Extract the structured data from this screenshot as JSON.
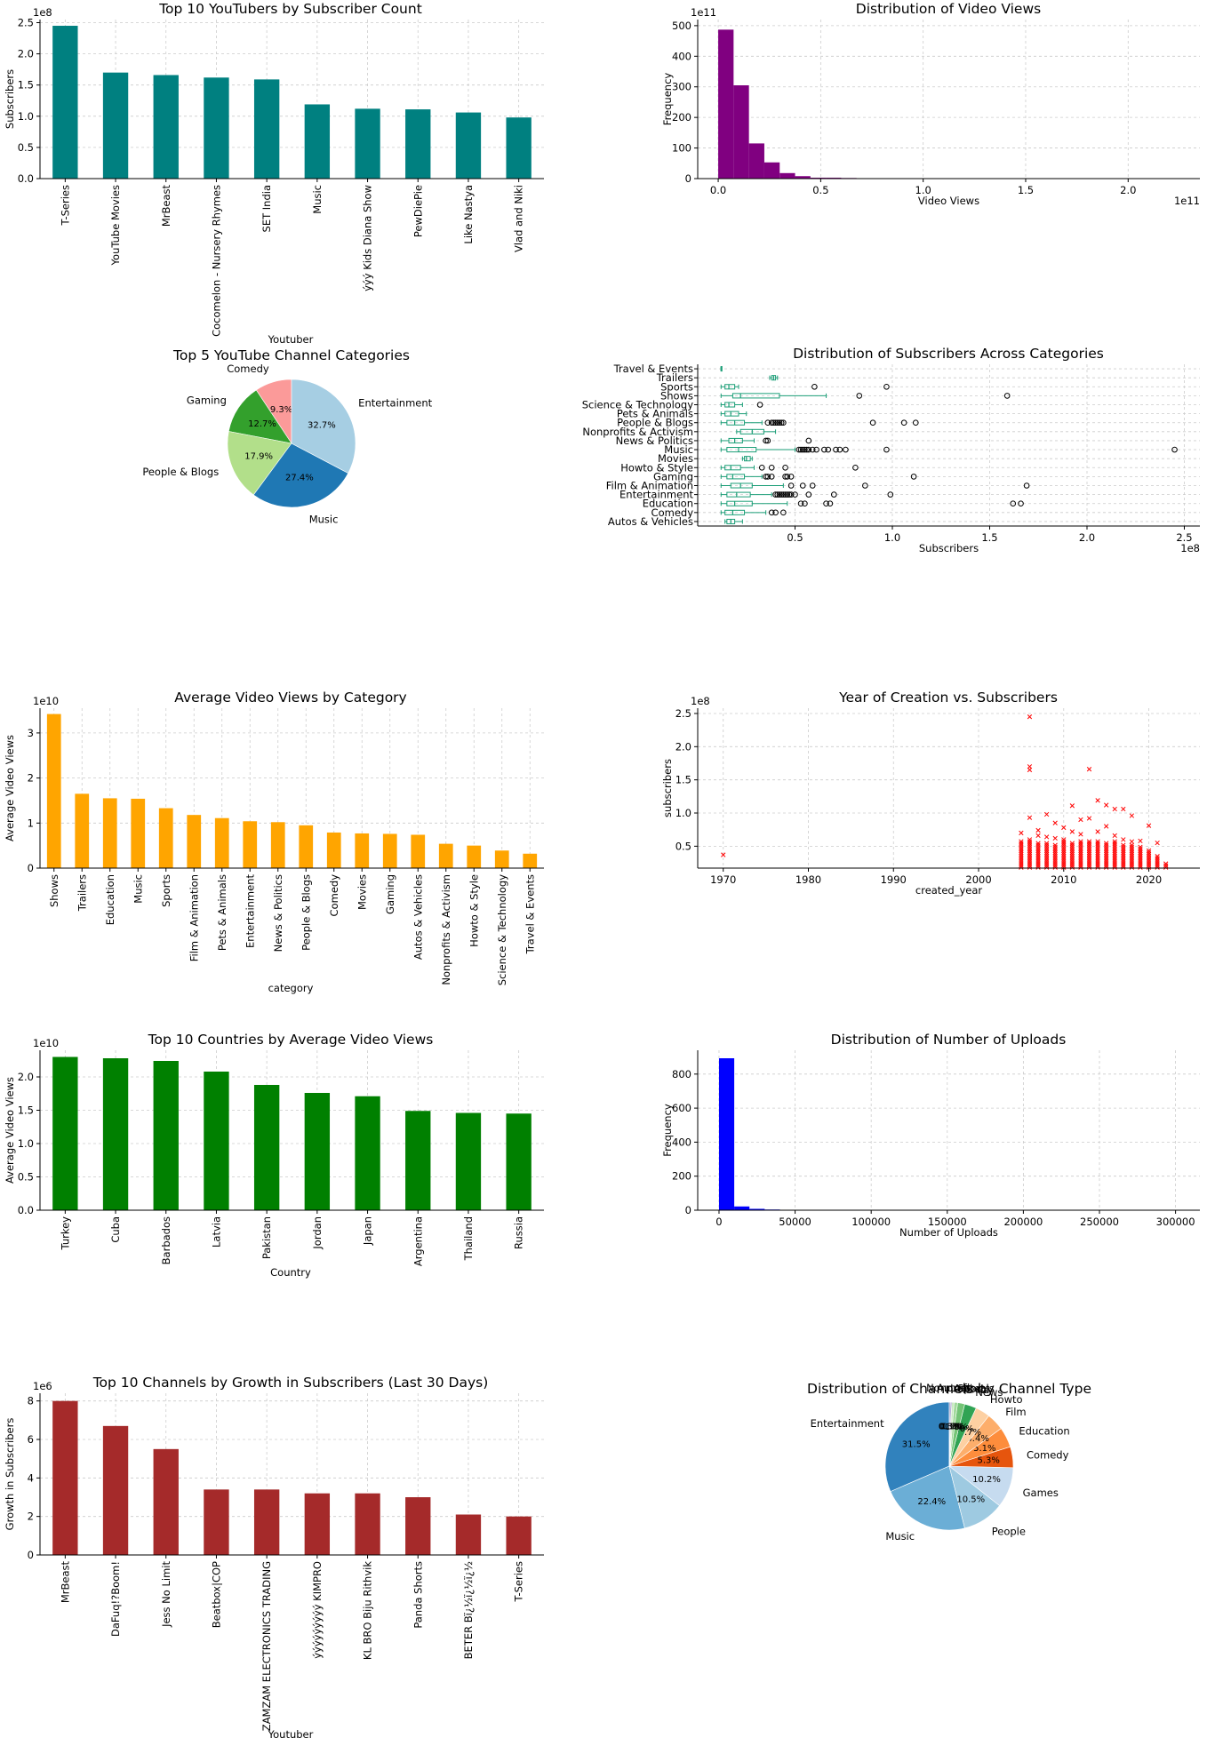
{
  "chart_data": [
    {
      "id": "top_youtubers",
      "type": "bar",
      "title": "Top 10 YouTubers by Subscriber Count",
      "xlabel": "Youtuber",
      "ylabel": "Subscribers",
      "exponent": "1e8",
      "color": "#008080",
      "categories": [
        "T-Series",
        "YouTube Movies",
        "MrBeast",
        "Cocomelon - Nursery Rhymes",
        "SET India",
        "Music",
        "ýýý Kids Diana Show",
        "PewDiePie",
        "Like Nastya",
        "Vlad and Niki"
      ],
      "values": [
        2.45,
        1.7,
        1.66,
        1.62,
        1.59,
        1.19,
        1.12,
        1.11,
        1.06,
        0.98
      ],
      "ylim": [
        0,
        2.55
      ],
      "yticks": [
        "0.0",
        "0.5",
        "1.0",
        "1.5",
        "2.0",
        "2.5"
      ],
      "ytick_values": [
        0,
        0.5,
        1.0,
        1.5,
        2.0,
        2.5
      ]
    },
    {
      "id": "video_views_hist",
      "type": "bar",
      "title": "Distribution of Video Views",
      "xlabel": "Video Views",
      "ylabel": "Frequency",
      "exponent": "1e11",
      "color": "#800080",
      "bin_width": 0.075,
      "bin_start": 0,
      "values": [
        487,
        305,
        115,
        53,
        18,
        8,
        3,
        3,
        2,
        0,
        0,
        1,
        1,
        0,
        0,
        0,
        0,
        0,
        0,
        0,
        0,
        0,
        0,
        0,
        0,
        0,
        0,
        0,
        0,
        0,
        1
      ],
      "xlim": [
        -0.1,
        2.35
      ],
      "ylim": [
        0,
        520
      ],
      "xticks": [
        "0.0",
        "0.5",
        "1.0",
        "1.5",
        "2.0"
      ],
      "xtick_values": [
        0,
        0.5,
        1.0,
        1.5,
        2.0
      ],
      "yticks": [
        "0",
        "100",
        "200",
        "300",
        "400",
        "500"
      ],
      "ytick_values": [
        0,
        100,
        200,
        300,
        400,
        500
      ]
    },
    {
      "id": "top_categories_pie",
      "type": "pie",
      "title": "Top 5 YouTube Channel Categories",
      "colors": [
        "#fb9a99",
        "#33a02c",
        "#b2df8a",
        "#1f78b4",
        "#a6cee3"
      ],
      "labels": [
        "Comedy",
        "Gaming",
        "People & Blogs",
        "Music",
        "Entertainment"
      ],
      "values": [
        9.3,
        12.7,
        17.9,
        27.4,
        32.7
      ],
      "pct_labels": [
        "9.3%",
        "12.7%",
        "17.9%",
        "27.4%",
        "32.7%"
      ],
      "start_angle": 90
    },
    {
      "id": "subs_by_category_box",
      "type": "box",
      "title": "Distribution of Subscribers Across Categories",
      "xlabel": "Subscribers",
      "exponent": "1e8",
      "box_color": "#1b9e77",
      "categories": [
        "Autos & Vehicles",
        "Comedy",
        "Education",
        "Entertainment",
        "Film & Animation",
        "Gaming",
        "Howto & Style",
        "Movies",
        "Music",
        "News & Politics",
        "Nonprofits & Activism",
        "People & Blogs",
        "Pets & Animals",
        "Science & Technology",
        "Shows",
        "Sports",
        "Trailers",
        "Travel & Events"
      ],
      "boxes": [
        {
          "wl": 0.14,
          "q1": 0.15,
          "med": 0.17,
          "q3": 0.19,
          "wh": 0.23,
          "out": []
        },
        {
          "wl": 0.12,
          "q1": 0.14,
          "med": 0.18,
          "q3": 0.24,
          "wh": 0.35,
          "out": [
            0.38,
            0.4,
            0.44
          ]
        },
        {
          "wl": 0.12,
          "q1": 0.15,
          "med": 0.19,
          "q3": 0.28,
          "wh": 0.46,
          "out": [
            0.53,
            0.55,
            0.66,
            0.68,
            1.62,
            1.66
          ]
        },
        {
          "wl": 0.12,
          "q1": 0.15,
          "med": 0.2,
          "q3": 0.27,
          "wh": 0.38,
          "out": [
            0.4,
            0.41,
            0.42,
            0.43,
            0.44,
            0.45,
            0.46,
            0.47,
            0.48,
            0.5,
            0.57,
            0.7,
            0.99
          ]
        },
        {
          "wl": 0.12,
          "q1": 0.17,
          "med": 0.22,
          "q3": 0.28,
          "wh": 0.44,
          "out": [
            0.48,
            0.54,
            0.59,
            0.86,
            1.69
          ]
        },
        {
          "wl": 0.12,
          "q1": 0.15,
          "med": 0.18,
          "q3": 0.24,
          "wh": 0.33,
          "out": [
            0.35,
            0.36,
            0.38,
            0.45,
            0.46,
            0.48,
            1.11
          ]
        },
        {
          "wl": 0.12,
          "q1": 0.14,
          "med": 0.17,
          "q3": 0.22,
          "wh": 0.29,
          "out": [
            0.33,
            0.38,
            0.45,
            0.81
          ]
        },
        {
          "wl": 0.23,
          "q1": 0.24,
          "med": 0.25,
          "q3": 0.27,
          "wh": 0.28,
          "out": []
        },
        {
          "wl": 0.12,
          "q1": 0.15,
          "med": 0.21,
          "q3": 0.3,
          "wh": 0.5,
          "out": [
            0.52,
            0.53,
            0.54,
            0.55,
            0.56,
            0.57,
            0.59,
            0.61,
            0.65,
            0.67,
            0.71,
            0.73,
            0.76,
            0.97,
            2.45
          ]
        },
        {
          "wl": 0.12,
          "q1": 0.16,
          "med": 0.19,
          "q3": 0.23,
          "wh": 0.29,
          "out": [
            0.35,
            0.36,
            0.57
          ]
        },
        {
          "wl": 0.2,
          "q1": 0.22,
          "med": 0.28,
          "q3": 0.34,
          "wh": 0.4,
          "out": []
        },
        {
          "wl": 0.12,
          "q1": 0.15,
          "med": 0.19,
          "q3": 0.24,
          "wh": 0.33,
          "out": [
            0.36,
            0.38,
            0.39,
            0.4,
            0.41,
            0.42,
            0.43,
            0.44,
            0.9,
            1.06,
            1.12
          ]
        },
        {
          "wl": 0.12,
          "q1": 0.14,
          "med": 0.17,
          "q3": 0.21,
          "wh": 0.25,
          "out": []
        },
        {
          "wl": 0.12,
          "q1": 0.14,
          "med": 0.16,
          "q3": 0.19,
          "wh": 0.23,
          "out": [
            0.32
          ]
        },
        {
          "wl": 0.12,
          "q1": 0.18,
          "med": 0.22,
          "q3": 0.42,
          "wh": 0.66,
          "out": [
            0.83,
            1.59
          ]
        },
        {
          "wl": 0.12,
          "q1": 0.14,
          "med": 0.16,
          "q3": 0.19,
          "wh": 0.21,
          "out": [
            0.6,
            0.97
          ]
        },
        {
          "wl": 0.37,
          "q1": 0.38,
          "med": 0.39,
          "q3": 0.4,
          "wh": 0.41,
          "out": []
        },
        {
          "wl": 0.12,
          "q1": 0.12,
          "med": 0.12,
          "q3": 0.12,
          "wh": 0.12,
          "out": []
        }
      ],
      "xlim": [
        0.0,
        2.58
      ],
      "xticks": [
        "0.5",
        "1.0",
        "1.5",
        "2.0",
        "2.5"
      ],
      "xtick_values": [
        0.5,
        1.0,
        1.5,
        2.0,
        2.5
      ]
    },
    {
      "id": "avg_views_category",
      "type": "bar",
      "title": "Average Video Views by Category",
      "xlabel": "category",
      "ylabel": "Average Video Views",
      "exponent": "1e10",
      "color": "#ffa500",
      "categories": [
        "Shows",
        "Trailers",
        "Education",
        "Music",
        "Sports",
        "Film & Animation",
        "Pets & Animals",
        "Entertainment",
        "News & Politics",
        "People & Blogs",
        "Comedy",
        "Movies",
        "Gaming",
        "Autos & Vehicles",
        "Nonprofits & Activism",
        "Howto & Style",
        "Science & Technology",
        "Travel & Events"
      ],
      "values": [
        3.42,
        1.65,
        1.55,
        1.54,
        1.33,
        1.18,
        1.11,
        1.04,
        1.02,
        0.95,
        0.79,
        0.77,
        0.76,
        0.74,
        0.54,
        0.5,
        0.39,
        0.32
      ],
      "ylim": [
        0,
        3.55
      ],
      "yticks": [
        "0",
        "1",
        "2",
        "3"
      ],
      "ytick_values": [
        0,
        1,
        2,
        3
      ]
    },
    {
      "id": "year_vs_subs",
      "type": "scatter",
      "title": "Year of Creation vs. Subscribers",
      "xlabel": "created_year",
      "ylabel": "subscribers",
      "exponent": "1e8",
      "color": "#ff0000",
      "marker": "x",
      "outliers": [
        [
          1970,
          0.37
        ],
        [
          2006,
          2.45
        ],
        [
          2006,
          1.7
        ],
        [
          2006,
          1.65
        ],
        [
          2013,
          1.66
        ],
        [
          2011,
          1.11
        ],
        [
          2014,
          1.19
        ],
        [
          2015,
          1.12
        ],
        [
          2016,
          1.06
        ],
        [
          2017,
          1.06
        ],
        [
          2018,
          0.96
        ],
        [
          2020,
          0.81
        ],
        [
          2008,
          0.98
        ],
        [
          2009,
          0.85
        ],
        [
          2010,
          0.78
        ],
        [
          2012,
          0.9
        ],
        [
          2013,
          0.92
        ],
        [
          2007,
          0.74
        ],
        [
          2006,
          0.93
        ],
        [
          2005,
          0.7
        ],
        [
          2021,
          0.55
        ],
        [
          2014,
          0.72
        ],
        [
          2015,
          0.8
        ],
        [
          2016,
          0.66
        ],
        [
          2017,
          0.6
        ],
        [
          2019,
          0.58
        ],
        [
          2012,
          0.68
        ],
        [
          2011,
          0.72
        ],
        [
          2010,
          0.6
        ],
        [
          2009,
          0.62
        ],
        [
          2018,
          0.57
        ],
        [
          2007,
          0.66
        ],
        [
          2008,
          0.64
        ]
      ],
      "dense_years": [
        2005,
        2006,
        2007,
        2008,
        2009,
        2010,
        2011,
        2012,
        2013,
        2014,
        2015,
        2016,
        2017,
        2018,
        2019,
        2020,
        2021,
        2022
      ],
      "dense_tops": [
        0.6,
        0.62,
        0.55,
        0.56,
        0.52,
        0.58,
        0.56,
        0.59,
        0.6,
        0.58,
        0.55,
        0.58,
        0.54,
        0.52,
        0.5,
        0.45,
        0.35,
        0.25
      ],
      "xlim": [
        1967,
        2026
      ],
      "ylim": [
        0.17,
        2.58
      ],
      "xticks": [
        "1970",
        "1980",
        "1990",
        "2000",
        "2010",
        "2020"
      ],
      "xtick_values": [
        1970,
        1980,
        1990,
        2000,
        2010,
        2020
      ],
      "yticks": [
        "0.5",
        "1.0",
        "1.5",
        "2.0",
        "2.5"
      ],
      "ytick_values": [
        0.5,
        1.0,
        1.5,
        2.0,
        2.5
      ]
    },
    {
      "id": "top_countries_views",
      "type": "bar",
      "title": "Top 10 Countries by Average Video Views",
      "xlabel": "Country",
      "ylabel": "Average Video Views",
      "exponent": "1e10",
      "color": "#008000",
      "categories": [
        "Turkey",
        "Cuba",
        "Barbados",
        "Latvia",
        "Pakistan",
        "Jordan",
        "Japan",
        "Argentina",
        "Thailand",
        "Russia"
      ],
      "values": [
        2.3,
        2.28,
        2.24,
        2.08,
        1.88,
        1.76,
        1.71,
        1.49,
        1.46,
        1.45
      ],
      "ylim": [
        0,
        2.4
      ],
      "yticks": [
        "0.0",
        "0.5",
        "1.0",
        "1.5",
        "2.0"
      ],
      "ytick_values": [
        0,
        0.5,
        1.0,
        1.5,
        2.0
      ]
    },
    {
      "id": "uploads_hist",
      "type": "bar",
      "title": "Distribution of Number of Uploads",
      "xlabel": "Number of Uploads",
      "ylabel": "Frequency",
      "color": "#0000ff",
      "bin_width": 10000,
      "bin_start": 0,
      "values": [
        893,
        22,
        8,
        4,
        2,
        2,
        1,
        0,
        0,
        1,
        1,
        0,
        0,
        0,
        0,
        0,
        0,
        0,
        0,
        0,
        0,
        0,
        0,
        0,
        0,
        0,
        0,
        0,
        0,
        0,
        1
      ],
      "xlim": [
        -14000,
        316000
      ],
      "ylim": [
        0,
        940
      ],
      "xticks": [
        "0",
        "50000",
        "100000",
        "150000",
        "200000",
        "250000",
        "300000"
      ],
      "xtick_values": [
        0,
        50000,
        100000,
        150000,
        200000,
        250000,
        300000
      ],
      "yticks": [
        "0",
        "200",
        "400",
        "600",
        "800"
      ],
      "ytick_values": [
        0,
        200,
        400,
        600,
        800
      ]
    },
    {
      "id": "growth_30_days",
      "type": "bar",
      "title": "Top 10 Channels by Growth in Subscribers (Last 30 Days)",
      "xlabel": "Youtuber",
      "ylabel": "Growth in Subscribers",
      "exponent": "1e6",
      "color": "#a52a2a",
      "categories": [
        "MrBeast",
        "DaFuq!?Boom!",
        "Jess No Limit",
        "Beatbox|COP",
        "ZAMZAM ELECTRONICS TRADING",
        "ýýýýýýýýý KIMPRO",
        "KL BRO Biju Rithvik",
        "Panda Shorts",
        "BETER Bï¿½ï¿½ï¿½",
        "T-Series"
      ],
      "values": [
        8.0,
        6.7,
        5.5,
        3.4,
        3.4,
        3.2,
        3.2,
        3.0,
        2.1,
        2.0
      ],
      "ylim": [
        0,
        8.4
      ],
      "yticks": [
        "0",
        "2",
        "4",
        "6",
        "8"
      ],
      "ytick_values": [
        0,
        2,
        4,
        6,
        8
      ]
    },
    {
      "id": "channel_type_pie",
      "type": "pie",
      "title": "Distribution of Channels by Channel Type",
      "labels": [
        "Entertainment",
        "Music",
        "People",
        "Games",
        "Comedy",
        "Education",
        "Film",
        "Howto",
        "News",
        "Tech",
        "Sports",
        "Animals",
        "Autos",
        "Nonprofit"
      ],
      "values": [
        31.5,
        22.4,
        10.5,
        10.2,
        5.3,
        5.1,
        4.4,
        3.7,
        3.0,
        1.8,
        0.9,
        0.6,
        0.3,
        0.3
      ],
      "pct_labels": [
        "31.5%",
        "22.4%",
        "10.5%",
        "10.2%",
        "5.3%",
        "5.1%",
        "4.4%",
        "3.7%",
        "3.0%",
        "1.8%",
        "0.9%",
        "0.6%",
        "0.3%",
        "0.3%"
      ],
      "colors": [
        "#3182bd",
        "#6baed6",
        "#9ecae1",
        "#c6dbef",
        "#e6550d",
        "#fd8d3c",
        "#fdae6b",
        "#fdd0a2",
        "#31a354",
        "#74c476",
        "#a1d99b",
        "#c7e9c0",
        "#756bb1",
        "#9e9ac8"
      ],
      "start_angle": 90
    }
  ]
}
